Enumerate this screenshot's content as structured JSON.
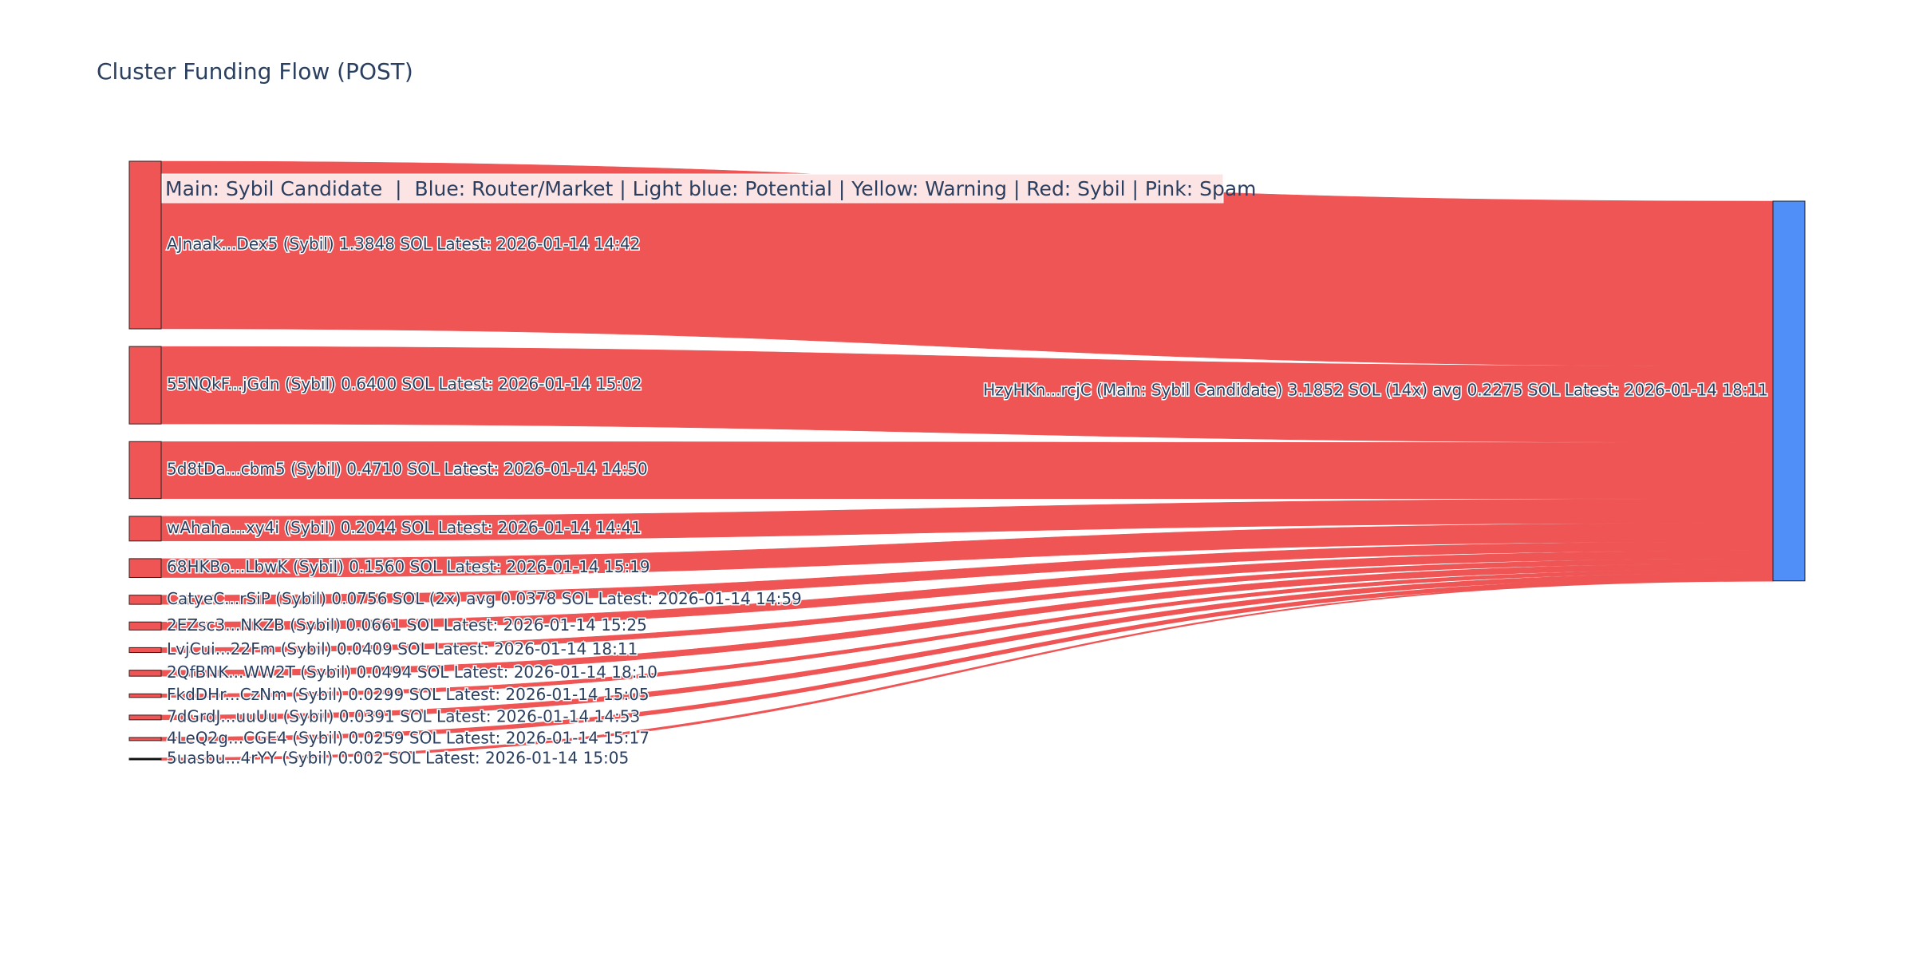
{
  "title": "Cluster Funding Flow (POST)",
  "legend_text": "Main: Sybil Candidate  |  Blue: Router/Market | Light blue: Potential | Yellow: Warning | Red: Sybil | Pink: Spam",
  "colors": {
    "sybil": "#ef5555",
    "main": "#4f8ff7",
    "text": "#2a3f5f",
    "legend_bg": "#fde4e4"
  },
  "chart_data": {
    "type": "sankey",
    "title": "Cluster Funding Flow (POST)",
    "unit": "SOL",
    "target": {
      "label": "HzyHKn...rcjC (Main: Sybil Candidate) 3.1852 SOL (14x) avg 0.2275 SOL Latest: 2026-01-14 18:11",
      "value": 3.1852,
      "category": "Main: Sybil Candidate"
    },
    "sources": [
      {
        "label": "AJnaak...Dex5 (Sybil) 1.3848 SOL Latest: 2026-01-14 14:42",
        "value": 1.3848
      },
      {
        "label": "55NQkF...jGdn (Sybil) 0.6400 SOL Latest: 2026-01-14 15:02",
        "value": 0.64
      },
      {
        "label": "5d8tDa...cbm5 (Sybil) 0.4710 SOL Latest: 2026-01-14 14:50",
        "value": 0.471
      },
      {
        "label": "wAhaha...xy4i (Sybil) 0.2044 SOL Latest: 2026-01-14 14:41",
        "value": 0.2044
      },
      {
        "label": "68HKBo...LbwK (Sybil) 0.1560 SOL Latest: 2026-01-14 15:19",
        "value": 0.156
      },
      {
        "label": "CatyeC...rSiP (Sybil) 0.0756 SOL (2x) avg 0.0378 SOL Latest: 2026-01-14 14:59",
        "value": 0.0756
      },
      {
        "label": "2EZsc3...NKZB (Sybil) 0.0661 SOL Latest: 2026-01-14 15:25",
        "value": 0.0661
      },
      {
        "label": "LvjCui...22Fm (Sybil) 0.0409 SOL Latest: 2026-01-14 18:11",
        "value": 0.0409
      },
      {
        "label": "2QfBNK...WW2T (Sybil) 0.0494 SOL Latest: 2026-01-14 18:10",
        "value": 0.0494
      },
      {
        "label": "FkdDHr...CzNm (Sybil) 0.0299 SOL Latest: 2026-01-14 15:05",
        "value": 0.0299
      },
      {
        "label": "7dGrdJ...uuUu (Sybil) 0.0391 SOL Latest: 2026-01-14 14:53",
        "value": 0.0391
      },
      {
        "label": "4LeQ2g...CGE4 (Sybil) 0.0259 SOL Latest: 2026-01-14 15:17",
        "value": 0.0259
      },
      {
        "label": "5uasbu...4rYY (Sybil) 0.002 SOL Latest: 2026-01-14 15:05",
        "value": 0.002
      }
    ]
  }
}
